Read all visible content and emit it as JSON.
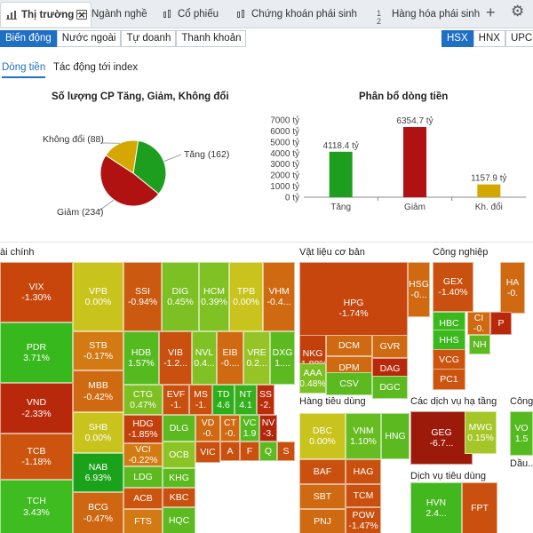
{
  "top_tabs": [
    {
      "label": "Thị trường",
      "close": "×"
    },
    {
      "label": "Ngành nghề"
    },
    {
      "label": "Cổ phiếu"
    },
    {
      "label": "Chứng khoán phái sinh"
    },
    {
      "label": "Hàng hóa phái sinh"
    }
  ],
  "top_actions": {
    "add": "+",
    "settings": "⚙"
  },
  "sub_nav": [
    "Biến động",
    "Nước ngoài",
    "Tự doanh",
    "Thanh khoản"
  ],
  "exchanges": [
    "HSX",
    "HNX",
    "UPCOM"
  ],
  "content_tabs": [
    "Dòng tiền",
    "Tác động tới index"
  ],
  "pie_title": "Số lượng CP Tăng, Giảm, Không đổi",
  "bar_title": "Phân bổ dòng tiền",
  "colors": {
    "up": "#1e9e1e",
    "down": "#b01111",
    "flat": "#d4a800",
    "accent": "#1f6fc5"
  },
  "chart_data": [
    {
      "type": "pie",
      "title": "Số lượng CP Tăng, Giảm, Không đổi",
      "categories": [
        "Tăng",
        "Giảm",
        "Không đổi"
      ],
      "values": [
        162,
        234,
        88
      ],
      "labels": [
        "Tăng (162)",
        "Giảm (234)",
        "Không đổi (88)"
      ],
      "colors": [
        "#1e9e1e",
        "#b01111",
        "#d4a800"
      ]
    },
    {
      "type": "bar",
      "title": "Phân bổ dòng tiền",
      "categories": [
        "Tăng",
        "Giảm",
        "Kh. đổi"
      ],
      "values": [
        4118.4,
        6354.7,
        1157.9
      ],
      "value_labels": [
        "4118.4 tỷ",
        "6354.7 tỷ",
        "1157.9 tỷ"
      ],
      "colors": [
        "#1e9e1e",
        "#b01111",
        "#d4a800"
      ],
      "yticks": [
        "0 tỷ",
        "1000 tỷ",
        "2000 tỷ",
        "3000 tỷ",
        "4000 tỷ",
        "5000 tỷ",
        "6000 tỷ",
        "7000 tỷ"
      ],
      "ylim": [
        0,
        7000
      ]
    }
  ],
  "treemap": {
    "sectors": [
      "ài chính",
      "Vật liệu cơ bản",
      "Công nghiệp",
      "Hàng tiêu dùng",
      "Các dịch vụ hạ tầng",
      "Công...",
      "Dịch vụ tiêu dùng",
      "Dầu..."
    ],
    "tiles": [
      {
        "t": "VIX",
        "p": "-1.30%",
        "c": "#c8460b"
      },
      {
        "t": "PDR",
        "p": "3.71%",
        "c": "#37b81d"
      },
      {
        "t": "VND",
        "p": "-2.33%",
        "c": "#b8290b"
      },
      {
        "t": "TCB",
        "p": "-1.18%",
        "c": "#cc540e"
      },
      {
        "t": "TCH",
        "p": "3.43%",
        "c": "#3fbc1f"
      },
      {
        "t": "VPB",
        "p": "0.00%",
        "c": "#c9c31d"
      },
      {
        "t": "STB",
        "p": "-0.17%",
        "c": "#d47a14"
      },
      {
        "t": "MBB",
        "p": "-0.42%",
        "c": "#d06a12"
      },
      {
        "t": "SHB",
        "p": "0.00%",
        "c": "#c9c31d"
      },
      {
        "t": "NAB",
        "p": "6.93%",
        "c": "#1aa21a"
      },
      {
        "t": "BCG",
        "p": "-0.47%",
        "c": "#cf6612"
      },
      {
        "t": "SSI",
        "p": "-0.94%",
        "c": "#cb5a10"
      },
      {
        "t": "DIG",
        "p": "0.45%",
        "c": "#7cc023"
      },
      {
        "t": "HCM",
        "p": "0.39%",
        "c": "#80c224"
      },
      {
        "t": "TPB",
        "p": "0.00%",
        "c": "#c9c31d"
      },
      {
        "t": "VHM",
        "p": "-0.4...",
        "c": "#d06a12"
      },
      {
        "t": "HDB",
        "p": "1.57%",
        "c": "#55ba20"
      },
      {
        "t": "VIB",
        "p": "-1.2...",
        "c": "#c9500e"
      },
      {
        "t": "NVL",
        "p": "0.4...",
        "c": "#80c224"
      },
      {
        "t": "EIB",
        "p": "-0....",
        "c": "#d06a12"
      },
      {
        "t": "VRE",
        "p": "0.2...",
        "c": "#95c426"
      },
      {
        "t": "DXG",
        "p": "1....",
        "c": "#5cba20"
      },
      {
        "t": "CTG",
        "p": "0.47%",
        "c": "#7cc023"
      },
      {
        "t": "EVF",
        "p": "-1.",
        "c": "#c9500e"
      },
      {
        "t": "MS",
        "p": "-1.",
        "c": "#c9500e"
      },
      {
        "t": "TD",
        "p": "4.6",
        "c": "#2fae1c"
      },
      {
        "t": "NT",
        "p": "4.1",
        "c": "#33b01c"
      },
      {
        "t": "SS",
        "p": "-2.",
        "c": "#bb2e0c"
      },
      {
        "t": "HDG",
        "p": "-1.85%",
        "c": "#c2400c"
      },
      {
        "t": "DLG",
        "p": "",
        "c": "#5cba20"
      },
      {
        "t": "VD",
        "p": "-0.",
        "c": "#d06a12"
      },
      {
        "t": "CT",
        "p": "-0.",
        "c": "#d06a12"
      },
      {
        "t": "VC",
        "p": "1.9",
        "c": "#55ba20"
      },
      {
        "t": "NV",
        "p": "-3.",
        "c": "#b2260b"
      },
      {
        "t": "VCI",
        "p": "-0.22%",
        "c": "#d47a14"
      },
      {
        "t": "OCB",
        "p": "",
        "c": "#8cc425"
      },
      {
        "t": "VIC",
        "p": "",
        "c": "#c9500e"
      },
      {
        "t": "LDG",
        "p": "",
        "c": "#5cba20"
      },
      {
        "t": "KHG",
        "p": "",
        "c": "#5cba20"
      },
      {
        "t": "ACB",
        "p": "",
        "c": "#cc540e"
      },
      {
        "t": "KBC",
        "p": "",
        "c": "#c9500e"
      },
      {
        "t": "FTS",
        "p": "",
        "c": "#d47a14"
      },
      {
        "t": "HQC",
        "p": "",
        "c": "#5cba20"
      },
      {
        "t": "A",
        "p": "",
        "c": "#c9500e"
      },
      {
        "t": "F",
        "p": "",
        "c": "#c9500e"
      },
      {
        "t": "Q",
        "p": "",
        "c": "#5cba20"
      },
      {
        "t": "S",
        "p": "",
        "c": "#c9500e"
      },
      {
        "t": "HPG",
        "p": "-1.74%",
        "c": "#c6460d"
      },
      {
        "t": "HSG",
        "p": "-0...",
        "c": "#d06a12"
      },
      {
        "t": "NKG",
        "p": "-1.88%",
        "c": "#c2400c"
      },
      {
        "t": "DCM",
        "p": "",
        "c": "#d06a12"
      },
      {
        "t": "GVR",
        "p": "",
        "c": "#d06a12"
      },
      {
        "t": "DPM",
        "p": "",
        "c": "#d06a12"
      },
      {
        "t": "DAG",
        "p": "",
        "c": "#b8290b"
      },
      {
        "t": "AAA",
        "p": "0.48%",
        "c": "#7cc023"
      },
      {
        "t": "CSV",
        "p": "",
        "c": "#5cba20"
      },
      {
        "t": "DGC",
        "p": "",
        "c": "#5cba20"
      },
      {
        "t": "GEX",
        "p": "-1.40%",
        "c": "#c9500e"
      },
      {
        "t": "HBC",
        "p": "",
        "c": "#3cb81e"
      },
      {
        "t": "HHS",
        "p": "",
        "c": "#3cb81e"
      },
      {
        "t": "VCG",
        "p": "",
        "c": "#cc540e"
      },
      {
        "t": "PC1",
        "p": "",
        "c": "#cc540e"
      },
      {
        "t": "NH",
        "p": "",
        "c": "#5cba20"
      },
      {
        "t": "DBC",
        "p": "0.00%",
        "c": "#c9c31d"
      },
      {
        "t": "VNM",
        "p": "1.10%",
        "c": "#66bc21"
      },
      {
        "t": "HNG",
        "p": "",
        "c": "#5cba20"
      },
      {
        "t": "BAF",
        "p": "",
        "c": "#c9500e"
      },
      {
        "t": "HAG",
        "p": "",
        "c": "#c9500e"
      },
      {
        "t": "SBT",
        "p": "",
        "c": "#d06a12"
      },
      {
        "t": "TCM",
        "p": "",
        "c": "#c9500e"
      },
      {
        "t": "PNJ",
        "p": "",
        "c": "#d06a12"
      },
      {
        "t": "POW",
        "p": "-1.47%",
        "c": "#c9500e"
      },
      {
        "t": "GEG",
        "p": "-6.7...",
        "c": "#9c1a0a"
      },
      {
        "t": "MWG",
        "p": "0.15%",
        "c": "#a5c627"
      },
      {
        "t": "HVN",
        "p": "2.4...",
        "c": "#43b71e"
      },
      {
        "t": "FPT",
        "p": "",
        "c": "#c9500e"
      },
      {
        "t": "VO",
        "p": "1.5",
        "c": "#55ba20"
      },
      {
        "t": "HA",
        "p": "-0.",
        "c": "#d06a12"
      },
      {
        "t": "CI",
        "p": "-0.",
        "c": "#d06a12"
      },
      {
        "t": "P",
        "p": "",
        "c": "#b8290b"
      }
    ]
  }
}
